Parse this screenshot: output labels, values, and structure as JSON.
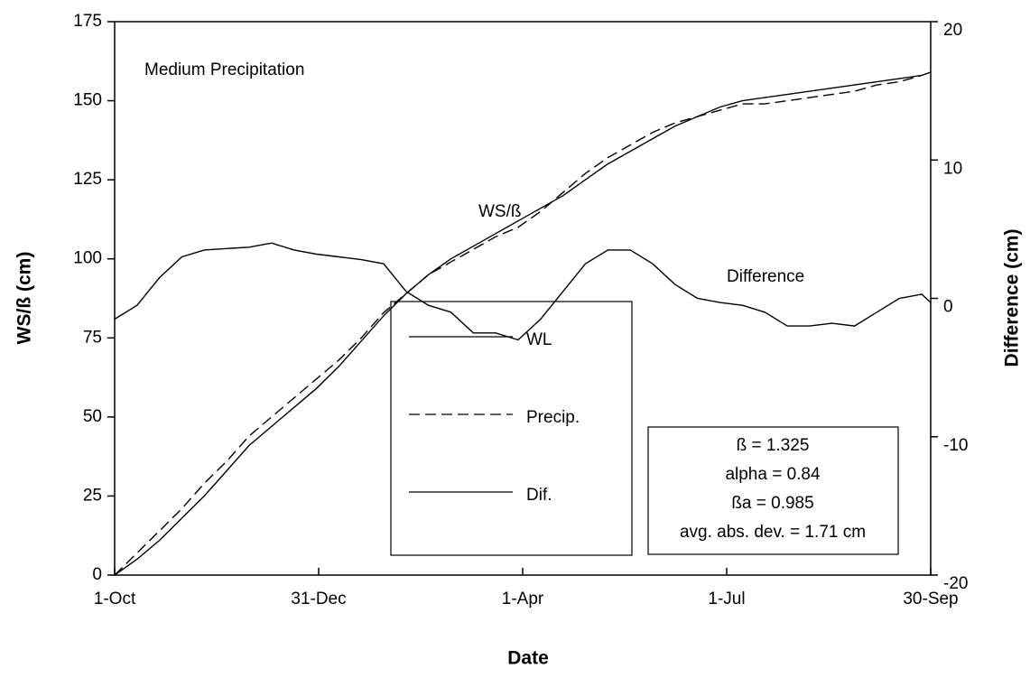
{
  "chart_data": {
    "type": "line",
    "annotations": [
      "Medium Precipitation",
      "WS/ß",
      "Difference"
    ],
    "stats_box": [
      "ß = 1.325",
      "alpha = 0.84",
      "ßa = 0.985",
      "avg. abs. dev. = 1.71 cm"
    ],
    "xlabel": "Date",
    "ylabel": "WS/ß (cm)",
    "y2label": "Difference (cm)",
    "x": [
      0,
      10,
      20,
      30,
      40,
      50,
      60,
      70,
      80,
      90,
      100,
      110,
      120,
      130,
      140,
      150,
      160,
      170,
      180,
      190,
      200,
      210,
      220,
      230,
      240,
      250,
      260,
      270,
      280,
      290,
      300,
      310,
      320,
      330,
      340,
      350,
      360,
      364
    ],
    "xlim": [
      0,
      364
    ],
    "xticks": [
      {
        "value": 0,
        "label": "1-Oct"
      },
      {
        "value": 91,
        "label": "31-Dec"
      },
      {
        "value": 182,
        "label": "1-Apr"
      },
      {
        "value": 273,
        "label": "1-Jul"
      },
      {
        "value": 364,
        "label": "30-Sep"
      }
    ],
    "ylim": [
      0,
      175
    ],
    "yticks": [
      0,
      25,
      50,
      75,
      100,
      125,
      150,
      175
    ],
    "y2lim": [
      -20,
      20
    ],
    "y2ticks": [
      -20,
      -10,
      0,
      10,
      20
    ],
    "series": [
      {
        "name": "WL",
        "color": "#000000",
        "style": "solid",
        "values": [
          0,
          5,
          11,
          18,
          25,
          33,
          41,
          47,
          53,
          59,
          66,
          74,
          82,
          89,
          95,
          100,
          104,
          108,
          112,
          116,
          120,
          125,
          130,
          134,
          138,
          142,
          145,
          148,
          150,
          151,
          152,
          153,
          154,
          155,
          156,
          157,
          158,
          159
        ]
      },
      {
        "name": "Precip.",
        "color": "#000000",
        "style": "dashed",
        "values": [
          0,
          7,
          14,
          21,
          29,
          36,
          44,
          50,
          56,
          62,
          68,
          75,
          83,
          89,
          95,
          99,
          103,
          107,
          110,
          115,
          121,
          127,
          132,
          136,
          140,
          143,
          145,
          147,
          149,
          149,
          150,
          151,
          152,
          153,
          155,
          156,
          158,
          159
        ]
      },
      {
        "name": "Dif.",
        "color": "#000000",
        "style": "solid",
        "axis": "y2",
        "values": [
          -1.5,
          -0.5,
          1.5,
          3,
          3.5,
          3.6,
          3.7,
          4,
          3.5,
          3.2,
          3,
          2.8,
          2.5,
          0.5,
          -0.5,
          -1,
          -2.5,
          -2.5,
          -3,
          -1.5,
          0.5,
          2.5,
          3.5,
          3.5,
          2.5,
          1,
          0,
          -0.3,
          -0.5,
          -1,
          -2,
          -2,
          -1.8,
          -2,
          -1,
          0,
          0.3,
          -0.3
        ]
      }
    ]
  }
}
